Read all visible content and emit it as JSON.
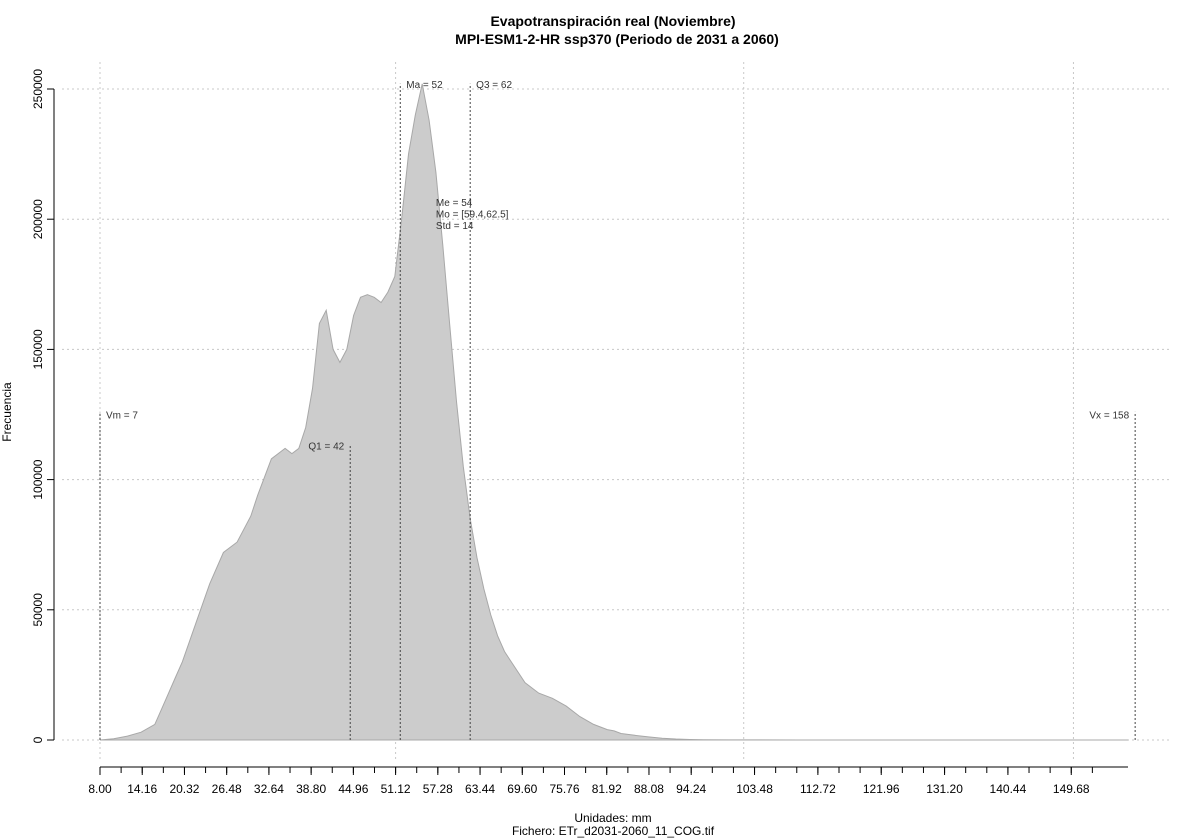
{
  "chart_data": {
    "type": "area",
    "title": "Evapotranspiración real (Noviembre)",
    "subtitle": "MPI-ESM1-2-HR ssp370 (Periodo de 2031 a 2060)",
    "xlabel": "Unidades: mm",
    "ylabel": "Frecuencia",
    "footer": "Fichero: ETr_d2031-2060_11_COG.tif",
    "xlim": [
      8.0,
      160.0
    ],
    "ylim": [
      0,
      250000
    ],
    "y_ticks": [
      0,
      50000,
      100000,
      150000,
      200000,
      250000
    ],
    "y_tick_labels": [
      "0",
      "50000",
      "100000",
      "150000",
      "200000",
      "250000"
    ],
    "x_ticks": [
      8.0,
      14.16,
      20.32,
      26.48,
      32.64,
      38.8,
      44.96,
      51.12,
      57.28,
      63.44,
      69.6,
      75.76,
      81.92,
      88.08,
      94.24,
      103.48,
      112.72,
      121.96,
      131.2,
      140.44,
      149.68
    ],
    "x_tick_labels": [
      "8.00",
      "14.16",
      "20.32",
      "26.48",
      "32.64",
      "38.80",
      "44.96",
      "51.12",
      "57.28",
      "63.44",
      "69.60",
      "75.76",
      "81.92",
      "88.08",
      "94.24",
      "103.48",
      "112.72",
      "121.96",
      "131.20",
      "140.44",
      "149.68"
    ],
    "grid": true,
    "fill_color": "#cccccc",
    "series": [
      {
        "x": [
          8,
          10,
          12,
          14,
          16,
          17,
          18,
          19,
          20,
          22,
          24,
          26,
          28,
          30,
          31,
          33,
          35,
          36,
          37,
          38,
          39,
          40,
          41,
          42,
          43,
          44,
          45,
          46,
          47,
          48,
          49,
          50,
          51,
          52,
          53,
          54,
          55,
          56,
          57,
          58,
          59,
          60,
          61,
          62,
          63,
          64,
          65,
          66,
          67,
          68,
          70,
          72,
          74,
          76,
          78,
          80,
          82,
          83,
          84,
          86,
          88,
          90,
          92,
          94,
          96,
          100,
          104,
          110,
          130,
          150,
          158
        ],
        "y": [
          0,
          500,
          1500,
          3000,
          6000,
          12000,
          18000,
          24000,
          30000,
          45000,
          60000,
          72000,
          76000,
          86000,
          94000,
          108000,
          112000,
          110000,
          112000,
          120000,
          135000,
          160000,
          165000,
          150000,
          145000,
          150000,
          163000,
          170000,
          171000,
          170000,
          168000,
          172000,
          178000,
          200000,
          225000,
          240000,
          252000,
          238000,
          218000,
          190000,
          160000,
          130000,
          105000,
          85000,
          70000,
          58000,
          48000,
          40000,
          34000,
          30000,
          22000,
          18000,
          16000,
          13000,
          9000,
          6000,
          4000,
          3500,
          2500,
          1800,
          1200,
          700,
          400,
          200,
          100,
          50,
          20,
          10,
          5,
          2,
          0
        ]
      }
    ],
    "annotations": [
      {
        "label": "Vm = 7",
        "x": 8.0,
        "y": 125000,
        "side": "right"
      },
      {
        "label": "Q1 = 42",
        "x": 44.5,
        "y": 113000,
        "side": "left"
      },
      {
        "label": "Ma = 52",
        "x": 51.8,
        "y": 252000,
        "side": "right"
      },
      {
        "label": "Q3 = 62",
        "x": 62.0,
        "y": 252000,
        "side": "right"
      },
      {
        "label": "Vx = 158",
        "x": 159.0,
        "y": 125000,
        "side": "left"
      }
    ],
    "markers": [
      {
        "x": 8.0,
        "y_top": 126000
      },
      {
        "x": 44.5,
        "y_top": 113000
      },
      {
        "x": 51.8,
        "y_top": 252000
      },
      {
        "x": 62.0,
        "y_top": 252000
      },
      {
        "x": 159.0,
        "y_top": 126000
      }
    ],
    "stats_text": [
      "Me = 54",
      "Mo = [59.4,62.5]",
      "Std = 14"
    ],
    "stats_anchor": {
      "x": 57.0,
      "y": 205000
    }
  }
}
